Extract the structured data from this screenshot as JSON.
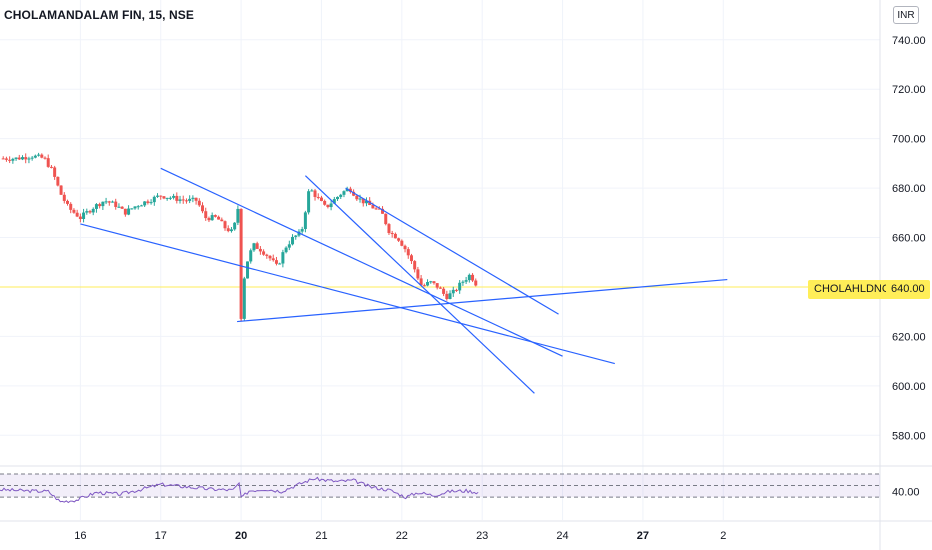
{
  "header": {
    "title": "CHOLAMANDALAM FIN, 15, NSE",
    "currency_label": "INR"
  },
  "colors": {
    "up": "#26a69a",
    "down": "#ef5350",
    "trendline": "#2962ff",
    "rsi": "#7e57c2",
    "price_line": "#ffee58",
    "grid": "#f0f3fa"
  },
  "price_badge": {
    "label": "CHOLAHLDNG",
    "value": "640.00"
  },
  "chart_data": {
    "type": "candlestick",
    "title": "",
    "y_axis": {
      "range": [
        570,
        748
      ],
      "ticks": [
        "740.00",
        "720.00",
        "700.00",
        "680.00",
        "660.00",
        "640.00",
        "620.00",
        "600.00",
        "580.00"
      ]
    },
    "x_axis": {
      "range": [
        15.0,
        25.95
      ],
      "ticks": [
        {
          "label": "16",
          "x": 16,
          "bold": false
        },
        {
          "label": "17",
          "x": 17,
          "bold": false
        },
        {
          "label": "20",
          "x": 18,
          "bold": true
        },
        {
          "label": "21",
          "x": 19,
          "bold": false
        },
        {
          "label": "22",
          "x": 20,
          "bold": false
        },
        {
          "label": "23",
          "x": 21,
          "bold": false
        },
        {
          "label": "24",
          "x": 22,
          "bold": false
        },
        {
          "label": "27",
          "x": 23,
          "bold": true
        },
        {
          "label": "2",
          "x": 24,
          "bold": false
        }
      ]
    },
    "horizontal_line": 640,
    "close_path": [
      [
        15.0,
        692
      ],
      [
        15.2,
        692
      ],
      [
        15.4,
        693
      ],
      [
        15.55,
        692
      ],
      [
        15.65,
        687
      ],
      [
        15.75,
        678
      ],
      [
        15.85,
        672
      ],
      [
        16.0,
        668
      ],
      [
        16.15,
        672
      ],
      [
        16.3,
        675
      ],
      [
        16.45,
        673
      ],
      [
        16.55,
        670
      ],
      [
        16.7,
        673
      ],
      [
        16.85,
        675
      ],
      [
        17.0,
        677
      ],
      [
        17.15,
        676
      ],
      [
        17.3,
        675
      ],
      [
        17.45,
        675
      ],
      [
        17.55,
        668
      ],
      [
        17.7,
        668
      ],
      [
        17.8,
        664
      ],
      [
        17.9,
        662
      ],
      [
        17.98,
        675
      ],
      [
        18.0,
        628
      ],
      [
        18.05,
        648
      ],
      [
        18.15,
        657
      ],
      [
        18.25,
        655
      ],
      [
        18.35,
        652
      ],
      [
        18.45,
        648
      ],
      [
        18.55,
        656
      ],
      [
        18.65,
        660
      ],
      [
        18.75,
        662
      ],
      [
        18.85,
        680
      ],
      [
        18.95,
        676
      ],
      [
        19.05,
        672
      ],
      [
        19.15,
        675
      ],
      [
        19.25,
        678
      ],
      [
        19.35,
        680
      ],
      [
        19.45,
        676
      ],
      [
        19.55,
        674
      ],
      [
        19.65,
        672
      ],
      [
        19.75,
        670
      ],
      [
        19.85,
        662
      ],
      [
        19.95,
        660
      ],
      [
        20.05,
        655
      ],
      [
        20.15,
        648
      ],
      [
        20.25,
        640
      ],
      [
        20.35,
        642
      ],
      [
        20.45,
        640
      ],
      [
        20.55,
        636
      ],
      [
        20.65,
        638
      ],
      [
        20.75,
        642
      ],
      [
        20.85,
        645
      ],
      [
        20.95,
        640
      ]
    ],
    "rsi": {
      "bands": [
        30,
        50,
        70
      ],
      "tick": "40.00",
      "values": [
        [
          15.0,
          43
        ],
        [
          15.3,
          41
        ],
        [
          15.6,
          40
        ],
        [
          15.75,
          22
        ],
        [
          15.95,
          25
        ],
        [
          16.2,
          38
        ],
        [
          16.5,
          35
        ],
        [
          16.8,
          45
        ],
        [
          17.0,
          52
        ],
        [
          17.3,
          48
        ],
        [
          17.6,
          44
        ],
        [
          17.9,
          42
        ],
        [
          17.98,
          55
        ],
        [
          18.0,
          28
        ],
        [
          18.1,
          41
        ],
        [
          18.3,
          44
        ],
        [
          18.5,
          40
        ],
        [
          18.75,
          54
        ],
        [
          18.9,
          62
        ],
        [
          19.2,
          57
        ],
        [
          19.4,
          59
        ],
        [
          19.6,
          48
        ],
        [
          19.85,
          42
        ],
        [
          20.05,
          30
        ],
        [
          20.2,
          38
        ],
        [
          20.4,
          33
        ],
        [
          20.6,
          40
        ],
        [
          20.8,
          41
        ],
        [
          20.95,
          38
        ]
      ]
    },
    "trendlines": [
      {
        "from": [
          16.0,
          665.5
        ],
        "to": [
          22.65,
          609
        ]
      },
      {
        "from": [
          17.0,
          688
        ],
        "to": [
          22.0,
          612
        ]
      },
      {
        "from": [
          17.95,
          626
        ],
        "to": [
          24.05,
          643
        ]
      },
      {
        "from": [
          18.8,
          685
        ],
        "to": [
          21.65,
          597
        ]
      },
      {
        "from": [
          19.3,
          680
        ],
        "to": [
          21.95,
          629
        ]
      }
    ]
  }
}
